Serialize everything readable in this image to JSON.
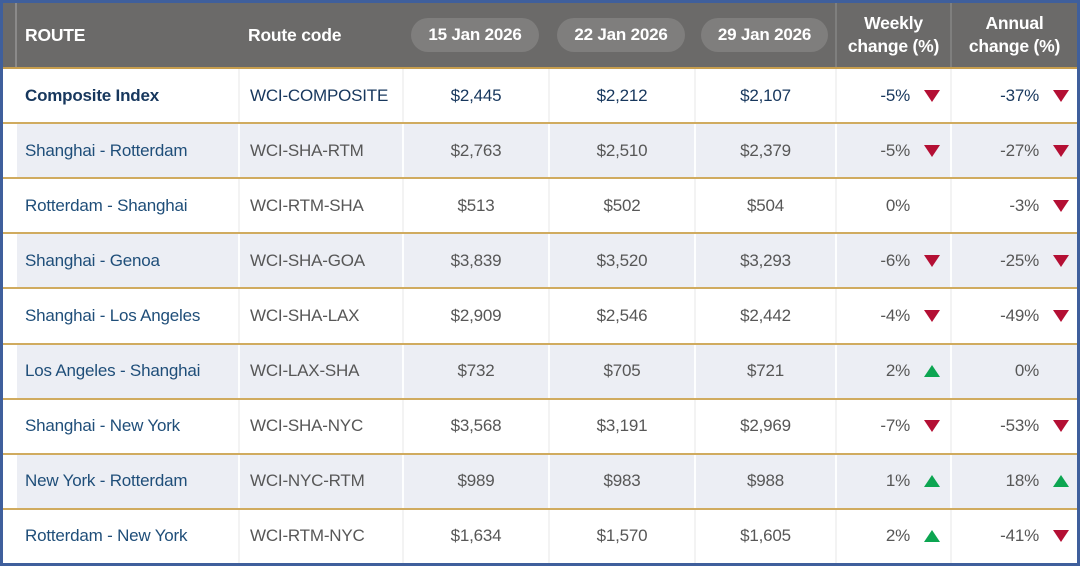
{
  "table": {
    "header": {
      "route": "ROUTE",
      "route_code": "Route code",
      "dates": [
        "15 Jan 2026",
        "22 Jan 2026",
        "29 Jan 2026"
      ],
      "weekly_change": "Weekly change (%)",
      "annual_change": "Annual change (%)"
    },
    "rows": [
      {
        "route": "Composite Index",
        "code": "WCI-COMPOSITE",
        "v0": "$2,445",
        "v1": "$2,212",
        "v2": "$2,107",
        "weekly": "-5%",
        "weekly_dir": "down",
        "annual": "-37%",
        "annual_dir": "down",
        "highlight": true
      },
      {
        "route": "Shanghai - Rotterdam",
        "code": "WCI-SHA-RTM",
        "v0": "$2,763",
        "v1": "$2,510",
        "v2": "$2,379",
        "weekly": "-5%",
        "weekly_dir": "down",
        "annual": "-27%",
        "annual_dir": "down",
        "highlight": false
      },
      {
        "route": "Rotterdam - Shanghai",
        "code": "WCI-RTM-SHA",
        "v0": "$513",
        "v1": "$502",
        "v2": "$504",
        "weekly": "0%",
        "weekly_dir": "none",
        "annual": "-3%",
        "annual_dir": "down",
        "highlight": false
      },
      {
        "route": "Shanghai - Genoa",
        "code": "WCI-SHA-GOA",
        "v0": "$3,839",
        "v1": "$3,520",
        "v2": "$3,293",
        "weekly": "-6%",
        "weekly_dir": "down",
        "annual": "-25%",
        "annual_dir": "down",
        "highlight": false
      },
      {
        "route": "Shanghai - Los Angeles",
        "code": "WCI-SHA-LAX",
        "v0": "$2,909",
        "v1": "$2,546",
        "v2": "$2,442",
        "weekly": "-4%",
        "weekly_dir": "down",
        "annual": "-49%",
        "annual_dir": "down",
        "highlight": false
      },
      {
        "route": "Los Angeles - Shanghai",
        "code": "WCI-LAX-SHA",
        "v0": "$732",
        "v1": "$705",
        "v2": "$721",
        "weekly": "2%",
        "weekly_dir": "up",
        "annual": "0%",
        "annual_dir": "none",
        "highlight": false
      },
      {
        "route": "Shanghai - New York",
        "code": "WCI-SHA-NYC",
        "v0": "$3,568",
        "v1": "$3,191",
        "v2": "$2,969",
        "weekly": "-7%",
        "weekly_dir": "down",
        "annual": "-53%",
        "annual_dir": "down",
        "highlight": false
      },
      {
        "route": "New York - Rotterdam",
        "code": "WCI-NYC-RTM",
        "v0": "$989",
        "v1": "$983",
        "v2": "$988",
        "weekly": "1%",
        "weekly_dir": "up",
        "annual": "18%",
        "annual_dir": "up",
        "highlight": false
      },
      {
        "route": "Rotterdam - New York",
        "code": "WCI-RTM-NYC",
        "v0": "$1,634",
        "v1": "$1,570",
        "v2": "$1,605",
        "weekly": "2%",
        "weekly_dir": "up",
        "annual": "-41%",
        "annual_dir": "down",
        "highlight": false
      }
    ],
    "colors": {
      "border_blue": "#3f5f9c",
      "header_gray": "#6b6a69",
      "pill_gray": "#7f7e7d",
      "gold_separator": "#d0ab5f",
      "gold_header_line": "#c79e4e",
      "row_alt_gray": "#eceef4",
      "route_navy": "#1f4e79",
      "highlight_navy": "#17375d",
      "value_gray": "#575757",
      "down_red": "#b40f34",
      "up_green": "#0ca551"
    }
  }
}
